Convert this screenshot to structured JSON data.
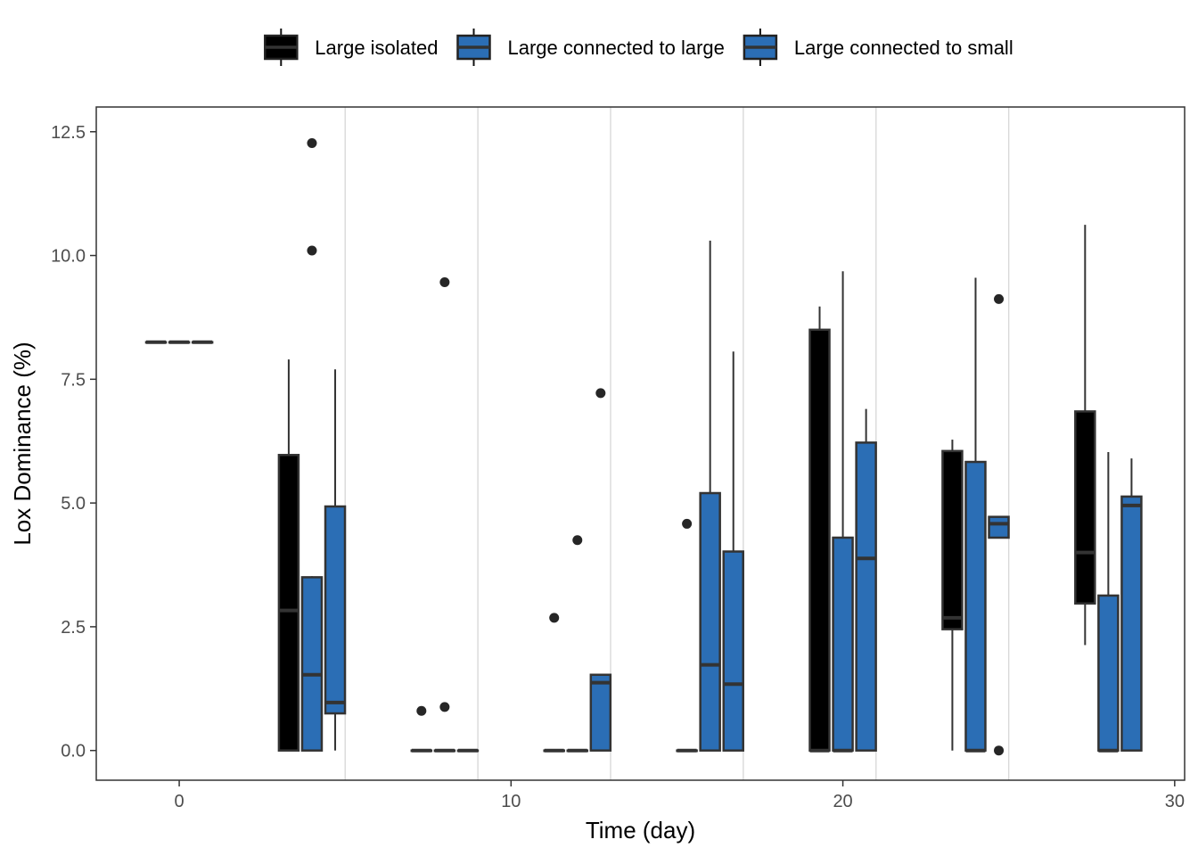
{
  "chart_data": {
    "type": "boxplot",
    "title": "",
    "xlabel": "Time (day)",
    "ylabel": "Lox Dominance (%)",
    "xlim": [
      -2.5,
      30.3
    ],
    "ylim": [
      -0.6,
      13.0
    ],
    "x_ticks": [
      0,
      10,
      20,
      30
    ],
    "x_tick_labels": [
      "0",
      "10",
      "20",
      "30"
    ],
    "y_ticks": [
      0,
      2.5,
      5,
      7.5,
      10,
      12.5
    ],
    "y_tick_labels": [
      "0.0",
      "2.5",
      "5.0",
      "7.5",
      "10.0",
      "12.5"
    ],
    "group_separators": [
      5,
      9,
      13,
      17,
      21,
      25
    ],
    "legend_position": "top",
    "series": [
      {
        "name": "Large isolated",
        "color": "#000000"
      },
      {
        "name": "Large connected to large",
        "color": "#2b6eb5"
      },
      {
        "name": "Large connected to small",
        "color": "#2b6eb5"
      }
    ],
    "groups": [
      {
        "time": 0,
        "boxes": [
          {
            "series": 0,
            "x": -0.7,
            "min": 8.25,
            "q1": 8.25,
            "median": 8.25,
            "q3": 8.25,
            "max": 8.25,
            "outliers": []
          },
          {
            "series": 1,
            "x": 0.0,
            "min": 8.25,
            "q1": 8.25,
            "median": 8.25,
            "q3": 8.25,
            "max": 8.25,
            "outliers": []
          },
          {
            "series": 2,
            "x": 0.7,
            "min": 8.25,
            "q1": 8.25,
            "median": 8.25,
            "q3": 8.25,
            "max": 8.25,
            "outliers": []
          }
        ]
      },
      {
        "time": 4,
        "boxes": [
          {
            "series": 0,
            "x": 3.3,
            "min": 0.0,
            "q1": 0.0,
            "median": 2.83,
            "q3": 5.97,
            "max": 7.9,
            "outliers": []
          },
          {
            "series": 1,
            "x": 4.0,
            "min": 0.0,
            "q1": 0.0,
            "median": 1.53,
            "q3": 3.5,
            "max": 3.52,
            "outliers": [
              10.1,
              12.27
            ]
          },
          {
            "series": 2,
            "x": 4.7,
            "min": 0.0,
            "q1": 0.75,
            "median": 0.97,
            "q3": 4.93,
            "max": 7.7,
            "outliers": []
          }
        ]
      },
      {
        "time": 8,
        "boxes": [
          {
            "series": 0,
            "x": 7.3,
            "min": 0.0,
            "q1": 0.0,
            "median": 0.0,
            "q3": 0.0,
            "max": 0.0,
            "outliers": [
              0.8
            ]
          },
          {
            "series": 1,
            "x": 8.0,
            "min": 0.0,
            "q1": 0.0,
            "median": 0.0,
            "q3": 0.0,
            "max": 0.0,
            "outliers": [
              0.88,
              9.46
            ]
          },
          {
            "series": 2,
            "x": 8.7,
            "min": 0.0,
            "q1": 0.0,
            "median": 0.0,
            "q3": 0.0,
            "max": 0.0,
            "outliers": []
          }
        ]
      },
      {
        "time": 12,
        "boxes": [
          {
            "series": 0,
            "x": 11.3,
            "min": 0.0,
            "q1": 0.0,
            "median": 0.0,
            "q3": 0.0,
            "max": 0.0,
            "outliers": [
              2.68
            ]
          },
          {
            "series": 1,
            "x": 12.0,
            "min": 0.0,
            "q1": 0.0,
            "median": 0.0,
            "q3": 0.0,
            "max": 0.0,
            "outliers": [
              4.25
            ]
          },
          {
            "series": 2,
            "x": 12.7,
            "min": 0.0,
            "q1": 0.0,
            "median": 1.37,
            "q3": 1.53,
            "max": 1.53,
            "outliers": [
              7.22
            ]
          }
        ]
      },
      {
        "time": 16,
        "boxes": [
          {
            "series": 0,
            "x": 15.3,
            "min": 0.0,
            "q1": 0.0,
            "median": 0.0,
            "q3": 0.0,
            "max": 0.0,
            "outliers": [
              4.58
            ]
          },
          {
            "series": 1,
            "x": 16.0,
            "min": 0.0,
            "q1": 0.0,
            "median": 1.73,
            "q3": 5.2,
            "max": 10.3,
            "outliers": []
          },
          {
            "series": 2,
            "x": 16.7,
            "min": 0.0,
            "q1": 0.0,
            "median": 1.34,
            "q3": 4.02,
            "max": 8.06,
            "outliers": []
          }
        ]
      },
      {
        "time": 20,
        "boxes": [
          {
            "series": 0,
            "x": 19.3,
            "min": 0.0,
            "q1": 0.0,
            "median": 0.0,
            "q3": 8.5,
            "max": 8.97,
            "outliers": []
          },
          {
            "series": 1,
            "x": 20.0,
            "min": 0.0,
            "q1": 0.0,
            "median": 0.0,
            "q3": 4.3,
            "max": 9.68,
            "outliers": []
          },
          {
            "series": 2,
            "x": 20.7,
            "min": 0.0,
            "q1": 0.0,
            "median": 3.88,
            "q3": 6.22,
            "max": 6.9,
            "outliers": []
          }
        ]
      },
      {
        "time": 24,
        "boxes": [
          {
            "series": 0,
            "x": 23.3,
            "min": 0.0,
            "q1": 2.45,
            "median": 2.68,
            "q3": 6.05,
            "max": 6.28,
            "outliers": []
          },
          {
            "series": 1,
            "x": 24.0,
            "min": 0.0,
            "q1": 0.0,
            "median": 0.0,
            "q3": 5.83,
            "max": 9.55,
            "outliers": []
          },
          {
            "series": 2,
            "x": 24.7,
            "min": 4.3,
            "q1": 4.3,
            "median": 4.58,
            "q3": 4.72,
            "max": 4.72,
            "outliers": [
              0.0,
              9.12
            ]
          }
        ]
      },
      {
        "time": 28,
        "boxes": [
          {
            "series": 0,
            "x": 27.3,
            "min": 2.13,
            "q1": 2.97,
            "median": 4.0,
            "q3": 6.85,
            "max": 10.62,
            "outliers": []
          },
          {
            "series": 1,
            "x": 28.0,
            "min": 0.0,
            "q1": 0.0,
            "median": 0.0,
            "q3": 3.13,
            "max": 6.03,
            "outliers": []
          },
          {
            "series": 2,
            "x": 28.7,
            "min": 0.0,
            "q1": 0.0,
            "median": 4.95,
            "q3": 5.13,
            "max": 5.9,
            "outliers": []
          }
        ]
      }
    ]
  }
}
